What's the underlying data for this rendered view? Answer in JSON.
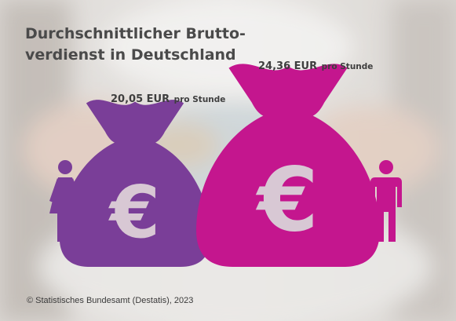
{
  "title": {
    "line1": "Durchschnittlicher Brutto-",
    "line2": "verdienst in Deutschland"
  },
  "colors": {
    "female": "#7a3e98",
    "male": "#c4168e",
    "euro_cutout": "#d8c8d4"
  },
  "chart_data": {
    "type": "bar",
    "title": "Durchschnittlicher Brutto- verdienst in Deutschland",
    "categories": [
      "Frauen",
      "Männer"
    ],
    "values": [
      20.05,
      24.36
    ],
    "unit": "EUR pro Stunde",
    "value_labels": [
      {
        "number": "20,05 EUR",
        "unit": "pro Stunde"
      },
      {
        "number": "24,36 EUR",
        "unit": "pro Stunde"
      }
    ],
    "icons": [
      "female-person-icon",
      "male-person-icon"
    ],
    "bar_shape": "money-bag-with-euro-sign"
  },
  "credit": "© Statistisches Bundesamt (Destatis), 2023"
}
